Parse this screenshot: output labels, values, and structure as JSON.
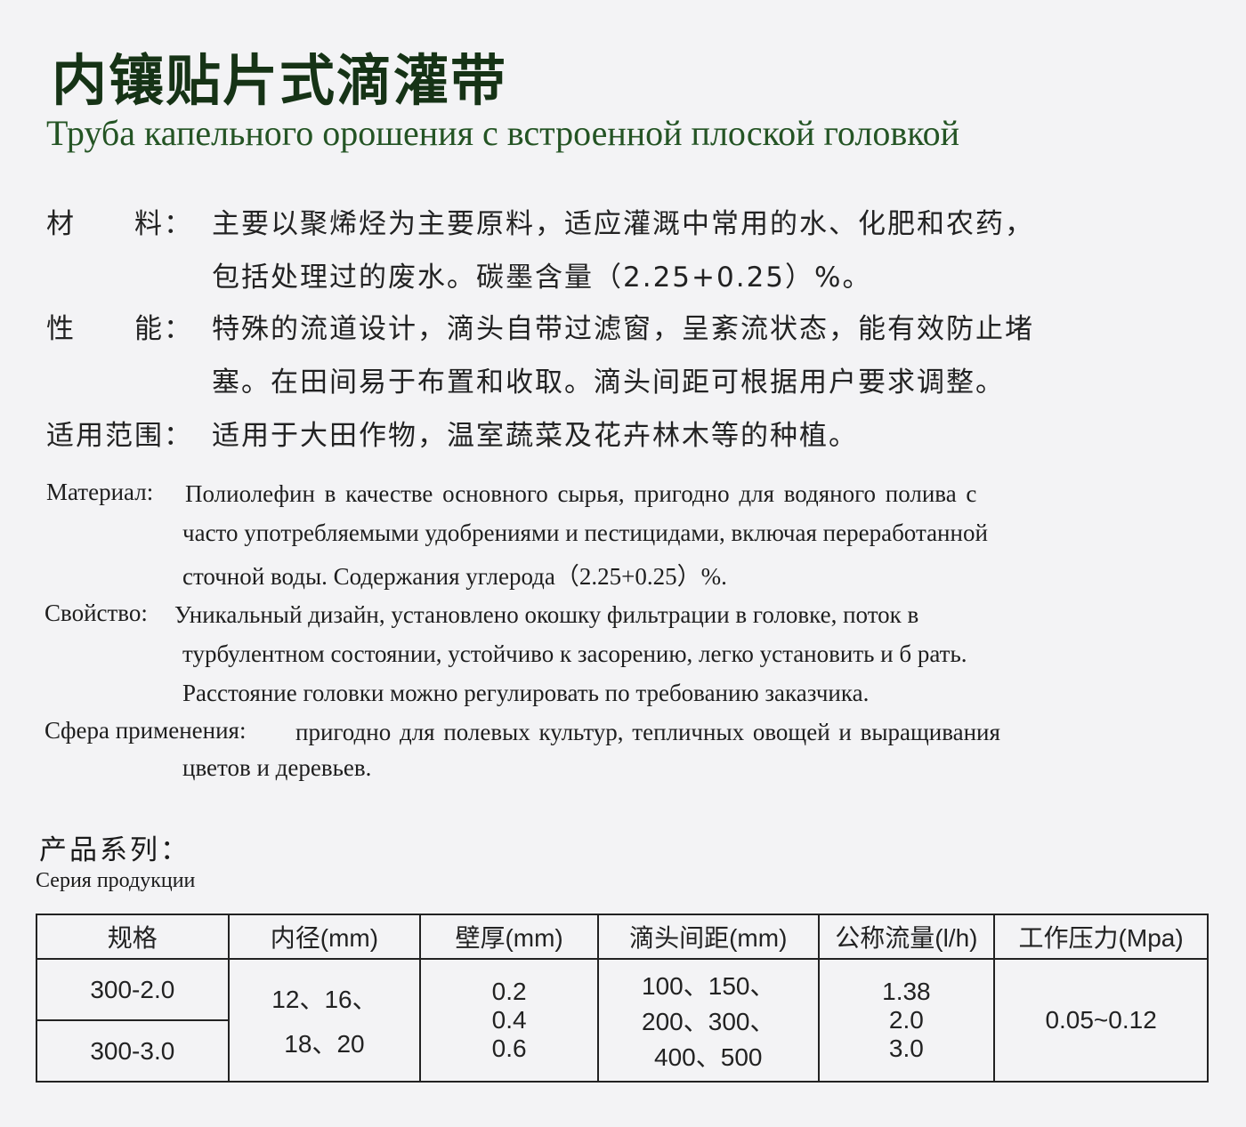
{
  "title": "内镶贴片式滴灌带",
  "subtitle": "Труба капельного орошения с встроенной плоской головкой",
  "zh_specs": [
    {
      "label": "材　　料：",
      "lines": [
        "主要以聚烯烃为主要原料，适应灌溉中常用的水、化肥和农药，",
        "包括处理过的废水。碳墨含量（2.25+0.25）%。"
      ]
    },
    {
      "label": "性　　能：",
      "lines": [
        "特殊的流道设计，滴头自带过滤窗，呈紊流状态，能有效防止堵",
        "塞。在田间易于布置和收取。滴头间距可根据用户要求调整。"
      ]
    },
    {
      "label": "适用范围：",
      "lines": [
        "适用于大田作物，温室蔬菜及花卉林木等的种植。"
      ]
    }
  ],
  "ru_specs": [
    {
      "label": "Материал:",
      "lines": [
        "Полиолефин в качестве основного сырья, пригодно для водяного полива с",
        "часто употребляемыми удобрениями и пестицидами, включая переработанной",
        "сточной воды. Содержания углерода（2.25+0.25）%."
      ]
    },
    {
      "label": "Свойство:",
      "lines": [
        "Уникальный дизайн, установлено окошку фильтрации в головке, поток в",
        "турбулентном состоянии, устойчиво к засорению, легко установить и б рать.",
        "Расстояние головки можно регулировать по требованию заказчика."
      ]
    },
    {
      "label": "Сфера применения:",
      "lines": [
        "пригодно для полевых культур, тепличных овощей и выращивания",
        "цветов и деревьев."
      ]
    }
  ],
  "series_heading_zh": "产品系列：",
  "series_heading_ru": "Серия продукции",
  "table": {
    "headers": [
      "规格",
      "内径(mm)",
      "壁厚(mm)",
      "滴头间距(mm)",
      "公称流量(l/h)",
      "工作压力(Mpa)"
    ],
    "specs": [
      "300-2.0",
      "300-3.0"
    ],
    "inner_diameter": [
      "12、16、",
      "18、20"
    ],
    "wall_thickness": [
      "0.2",
      "0.4",
      "0.6"
    ],
    "emitter_spacing": [
      "100、150、",
      "200、300、",
      "400、500"
    ],
    "flow": [
      "1.38",
      "2.0",
      "3.0"
    ],
    "pressure": "0.05~0.12"
  }
}
